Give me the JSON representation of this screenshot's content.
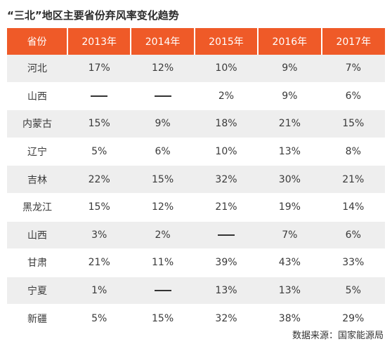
{
  "title": "“三北”地区主要省份弃风率变化趋势",
  "table": {
    "headers": [
      "省份",
      "2013年",
      "2014年",
      "2015年",
      "2016年",
      "2017年"
    ],
    "rows": [
      {
        "province": "河北",
        "values": [
          "17%",
          "12%",
          "10%",
          "9%",
          "7%"
        ]
      },
      {
        "province": "山西",
        "values": [
          "—",
          "—",
          "2%",
          "9%",
          "6%"
        ]
      },
      {
        "province": "内蒙古",
        "values": [
          "15%",
          "9%",
          "18%",
          "21%",
          "15%"
        ]
      },
      {
        "province": "辽宁",
        "values": [
          "5%",
          "6%",
          "10%",
          "13%",
          "8%"
        ]
      },
      {
        "province": "吉林",
        "values": [
          "22%",
          "15%",
          "32%",
          "30%",
          "21%"
        ]
      },
      {
        "province": "黑龙江",
        "values": [
          "15%",
          "12%",
          "21%",
          "19%",
          "14%"
        ]
      },
      {
        "province": "山西",
        "values": [
          "3%",
          "2%",
          "—",
          "7%",
          "6%"
        ]
      },
      {
        "province": "甘肃",
        "values": [
          "21%",
          "11%",
          "39%",
          "43%",
          "33%"
        ]
      },
      {
        "province": "宁夏",
        "values": [
          "1%",
          "—",
          "13%",
          "13%",
          "5%"
        ]
      },
      {
        "province": "新疆",
        "values": [
          "5%",
          "15%",
          "32%",
          "38%",
          "29%"
        ]
      }
    ]
  },
  "source": "数据来源：国家能源局",
  "colors": {
    "header_bg": "#ef5a28",
    "stripe_bg": "#eeeeee",
    "text": "#3a3a3a"
  }
}
